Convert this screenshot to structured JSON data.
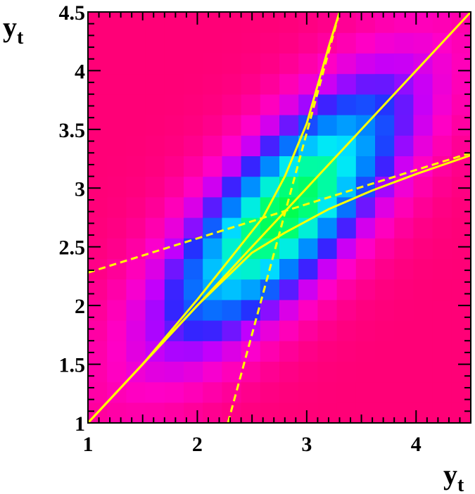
{
  "chart_data": {
    "type": "heatmap",
    "title": "",
    "xlabel": {
      "main": "y",
      "sub": "t"
    },
    "ylabel": {
      "main": "y",
      "sub": "t"
    },
    "xlim": [
      1,
      4.5
    ],
    "ylim": [
      1,
      4.5
    ],
    "xticks": [
      1,
      2,
      3,
      4
    ],
    "yticks": [
      1,
      1.5,
      2,
      2.5,
      3,
      3.5,
      4,
      4.5
    ],
    "xtick_labels": [
      "1",
      "2",
      "3",
      "4"
    ],
    "ytick_labels": [
      "1",
      "1.5",
      "2",
      "2.5",
      "3",
      "3.5",
      "4",
      "4.5"
    ],
    "bins": 20,
    "peak": [
      2.8,
      2.8
    ],
    "colors": {
      "low": "#ff0077",
      "mid_low": "#ff00ff",
      "mid": "#0000ff",
      "mid_high": "#00ffff",
      "high": "#00ff55",
      "curve": "#ffff00"
    },
    "curves": [
      {
        "style": "solid",
        "x": [
          1,
          4.5
        ],
        "y": [
          1,
          4.5
        ]
      },
      {
        "style": "solid",
        "x": [
          1,
          1.5,
          2,
          2.3,
          2.6,
          2.8,
          3.0,
          3.2,
          3.3
        ],
        "y": [
          1,
          1.5,
          2.05,
          2.4,
          2.75,
          3.1,
          3.55,
          4.2,
          4.5
        ]
      },
      {
        "style": "solid",
        "x": [
          1,
          1.5,
          2,
          2.5,
          2.8,
          3.2,
          3.6,
          4.0,
          4.5
        ],
        "y": [
          1,
          1.5,
          2.0,
          2.45,
          2.62,
          2.82,
          2.98,
          3.12,
          3.28
        ]
      },
      {
        "style": "dashed",
        "x": [
          1,
          4.5
        ],
        "y": [
          2.28,
          3.3
        ]
      },
      {
        "style": "dashed",
        "x": [
          2.28,
          3.3
        ],
        "y": [
          1,
          4.5
        ]
      }
    ]
  }
}
